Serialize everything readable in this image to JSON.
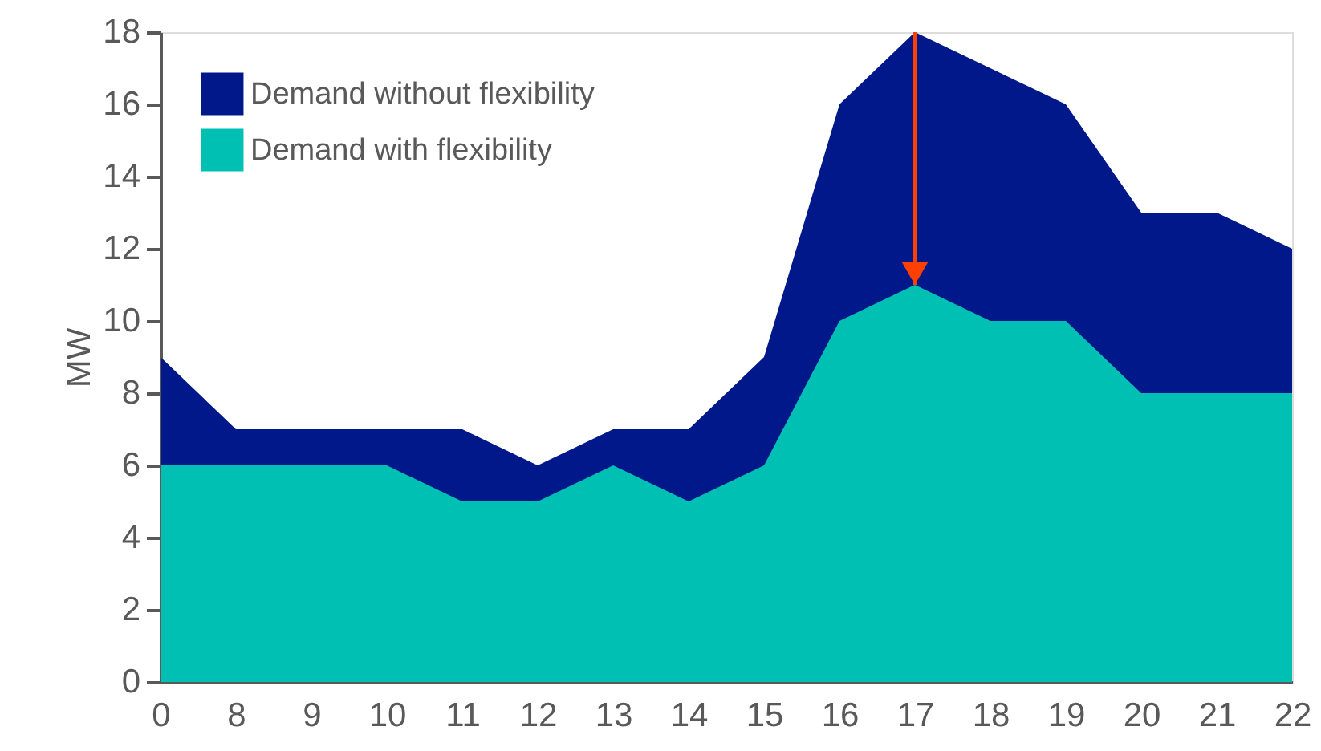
{
  "chart_data": {
    "type": "area",
    "ylabel": "MW",
    "categories": [
      "0",
      "8",
      "9",
      "10",
      "11",
      "12",
      "13",
      "14",
      "15",
      "16",
      "17",
      "18",
      "19",
      "20",
      "21",
      "22"
    ],
    "series": [
      {
        "name": "Demand without flexibility",
        "color": "#00188a",
        "values": [
          9,
          7,
          7,
          7,
          7,
          6,
          7,
          7,
          9,
          16,
          18,
          17,
          16,
          13,
          13,
          12
        ]
      },
      {
        "name": "Demand with flexibility",
        "color": "#00bfb3",
        "values": [
          6,
          6,
          6,
          6,
          5,
          5,
          6,
          5,
          6,
          10,
          11,
          10,
          10,
          8,
          8,
          8
        ]
      }
    ],
    "ylim": [
      0,
      18
    ],
    "yticks": [
      0,
      2,
      4,
      6,
      8,
      10,
      12,
      14,
      16,
      18
    ],
    "grid": false,
    "legend": "top left"
  }
}
